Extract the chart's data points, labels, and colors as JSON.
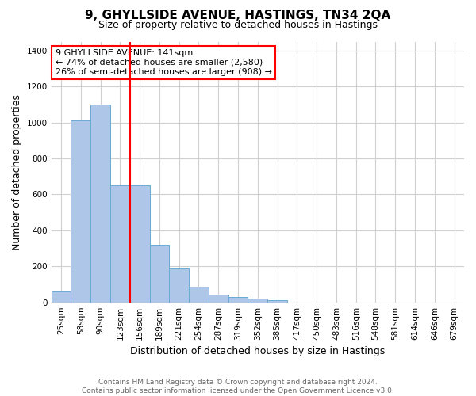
{
  "title1": "9, GHYLLSIDE AVENUE, HASTINGS, TN34 2QA",
  "title2": "Size of property relative to detached houses in Hastings",
  "xlabel": "Distribution of detached houses by size in Hastings",
  "ylabel": "Number of detached properties",
  "footnote": "Contains HM Land Registry data © Crown copyright and database right 2024.\nContains public sector information licensed under the Open Government Licence v3.0.",
  "categories": [
    "25sqm",
    "58sqm",
    "90sqm",
    "123sqm",
    "156sqm",
    "189sqm",
    "221sqm",
    "254sqm",
    "287sqm",
    "319sqm",
    "352sqm",
    "385sqm",
    "417sqm",
    "450sqm",
    "483sqm",
    "516sqm",
    "548sqm",
    "581sqm",
    "614sqm",
    "646sqm",
    "679sqm"
  ],
  "values": [
    60,
    1010,
    1100,
    650,
    650,
    320,
    190,
    85,
    42,
    28,
    22,
    13,
    0,
    0,
    0,
    0,
    0,
    0,
    0,
    0,
    0
  ],
  "bar_color": "#aec6e8",
  "bar_edge_color": "#6aaad4",
  "grid_color": "#d0d0d0",
  "vline_color": "red",
  "vline_index": 4,
  "annotation_text": "9 GHYLLSIDE AVENUE: 141sqm\n← 74% of detached houses are smaller (2,580)\n26% of semi-detached houses are larger (908) →",
  "annotation_box_color": "white",
  "annotation_box_edge": "red",
  "ylim": [
    0,
    1450
  ],
  "yticks": [
    0,
    200,
    400,
    600,
    800,
    1000,
    1200,
    1400
  ],
  "background_color": "white",
  "title1_fontsize": 11,
  "title2_fontsize": 9,
  "xlabel_fontsize": 9,
  "ylabel_fontsize": 9,
  "tick_fontsize": 7.5,
  "annot_fontsize": 8,
  "footnote_fontsize": 6.5,
  "footnote_color": "#666666"
}
